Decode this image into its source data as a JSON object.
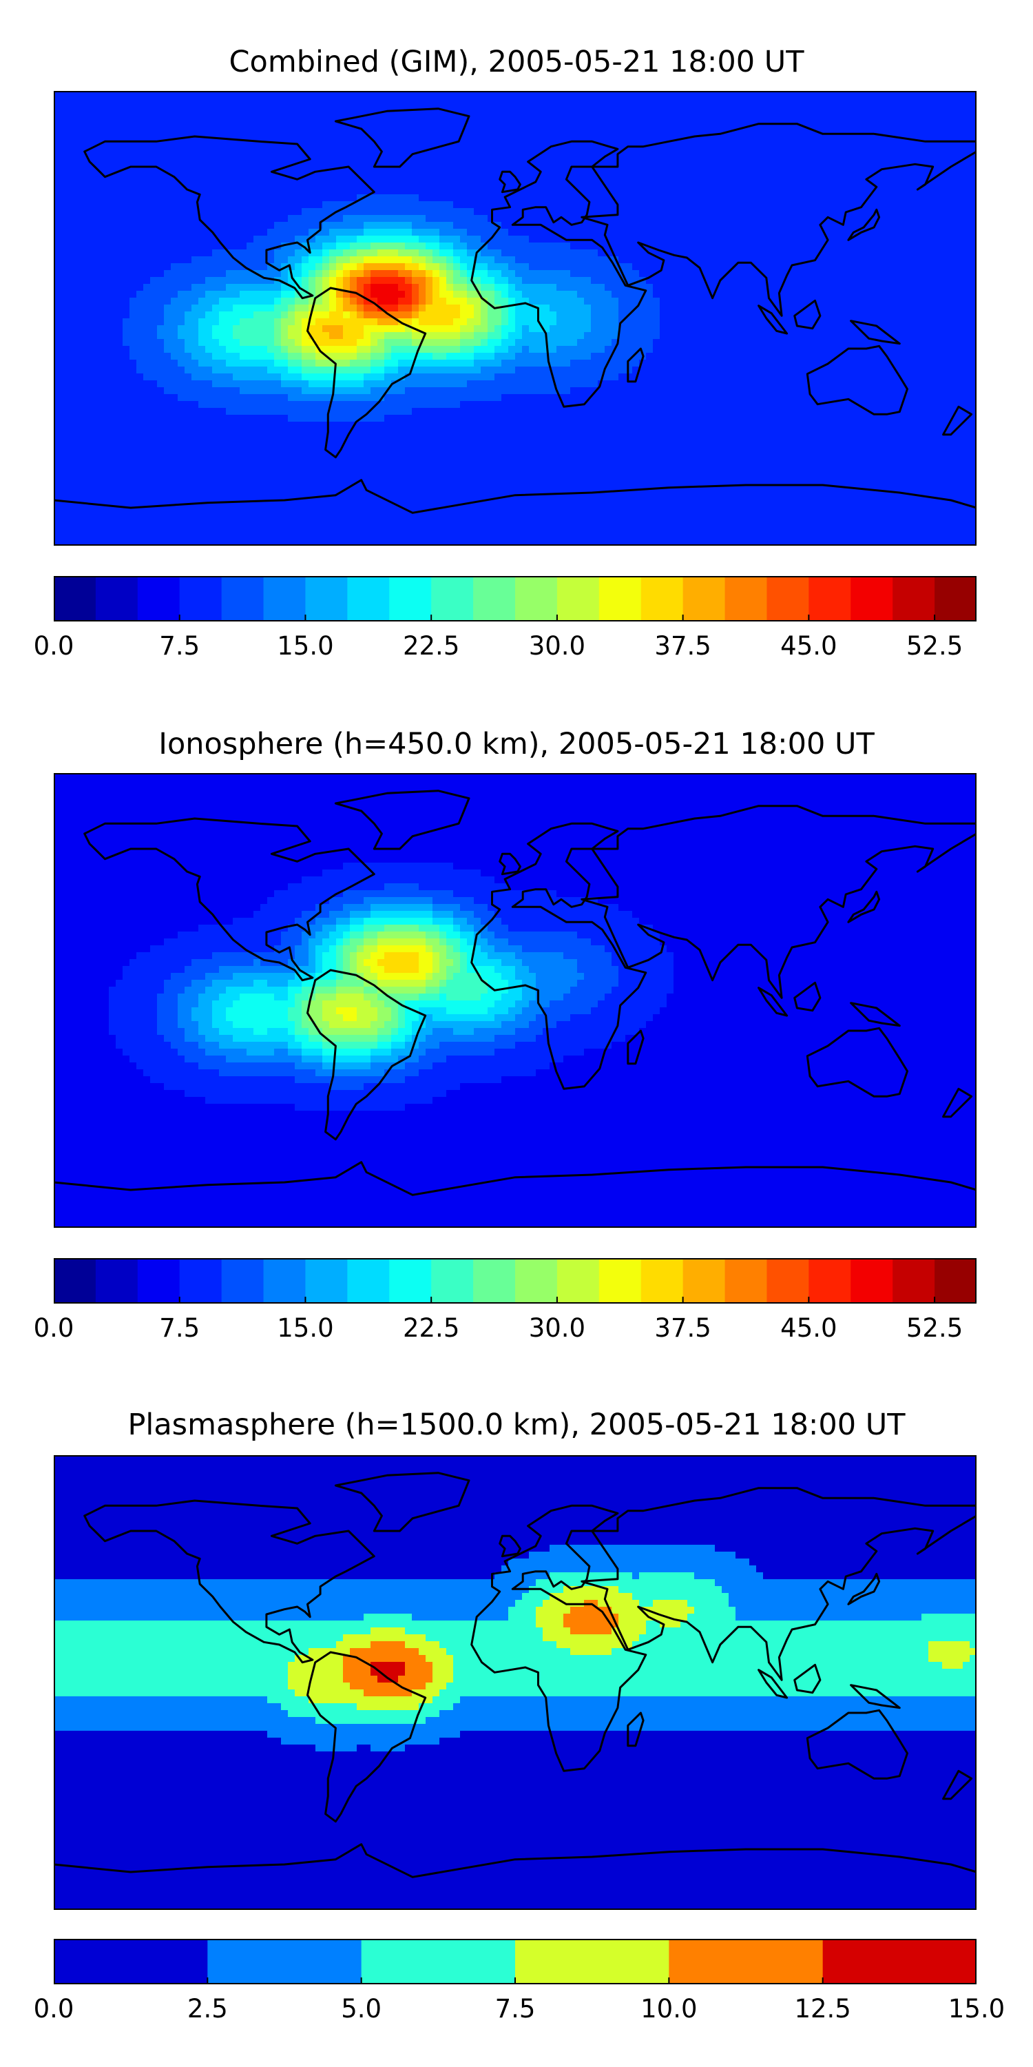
{
  "chart_data": [
    {
      "type": "heatmap",
      "title": "Combined (GIM), 2005-05-21 18:00 UT",
      "colorbar": {
        "range": [
          0,
          55
        ],
        "levels": 22,
        "tick_labels": [
          "0.0",
          "7.5",
          "15.0",
          "22.5",
          "30.0",
          "37.5",
          "45.0",
          "52.5"
        ],
        "tick_values": [
          0,
          7.5,
          15,
          22.5,
          30,
          37.5,
          45,
          52.5
        ],
        "colormap": "jet"
      },
      "field": {
        "background": 9,
        "peaks": [
          {
            "lon": -50,
            "lat": 10,
            "value": 49
          },
          {
            "lon": -70,
            "lat": -5,
            "value": 38
          },
          {
            "lon": -30,
            "lat": 2,
            "value": 37
          },
          {
            "lon": -100,
            "lat": -5,
            "value": 24
          },
          {
            "lon": 10,
            "lat": 0,
            "value": 18
          },
          {
            "lon": 90,
            "lat": 20,
            "value": 8
          },
          {
            "lon": 60,
            "lat": -10,
            "value": 6
          }
        ],
        "low_region": {
          "lat_below": -45,
          "value": 5
        }
      }
    },
    {
      "type": "heatmap",
      "title": "Ionosphere  (h=450.0 km), 2005-05-21 18:00 UT",
      "colorbar": {
        "range": [
          0,
          55
        ],
        "levels": 22,
        "tick_labels": [
          "0.0",
          "7.5",
          "15.0",
          "22.5",
          "30.0",
          "37.5",
          "45.0",
          "52.5"
        ],
        "tick_values": [
          0,
          7.5,
          15,
          22.5,
          30,
          37.5,
          45,
          52.5
        ],
        "colormap": "jet"
      },
      "field": {
        "background": 7,
        "peaks": [
          {
            "lon": -45,
            "lat": 15,
            "value": 37
          },
          {
            "lon": -65,
            "lat": -5,
            "value": 33
          },
          {
            "lon": -100,
            "lat": -5,
            "value": 22
          },
          {
            "lon": -20,
            "lat": 5,
            "value": 24
          },
          {
            "lon": 10,
            "lat": 10,
            "value": 14
          }
        ],
        "low_region": {
          "lat_below": -45,
          "value": 3
        }
      }
    },
    {
      "type": "heatmap",
      "title": "Plasmasphere (h=1500.0 km), 2005-05-21 18:00 UT",
      "colorbar": {
        "range": [
          0,
          15
        ],
        "levels": 6,
        "tick_labels": [
          "0.0",
          "2.5",
          "5.0",
          "7.5",
          "10.0",
          "12.5",
          "15.0"
        ],
        "tick_values": [
          0,
          2.5,
          5,
          7.5,
          10,
          12.5,
          15
        ],
        "colormap": "jet"
      },
      "field": {
        "background": 1.5,
        "band": {
          "lat_center": 10,
          "value": 6.5
        },
        "peaks": [
          {
            "lon": -50,
            "lat": 5,
            "value": 13
          },
          {
            "lon": -70,
            "lat": 3,
            "value": 10
          },
          {
            "lon": 30,
            "lat": 25,
            "value": 11
          },
          {
            "lon": 60,
            "lat": 28,
            "value": 8
          },
          {
            "lon": 170,
            "lat": 12,
            "value": 8
          }
        ],
        "low_region": {
          "lat_below": -45,
          "value": 1
        }
      }
    }
  ]
}
